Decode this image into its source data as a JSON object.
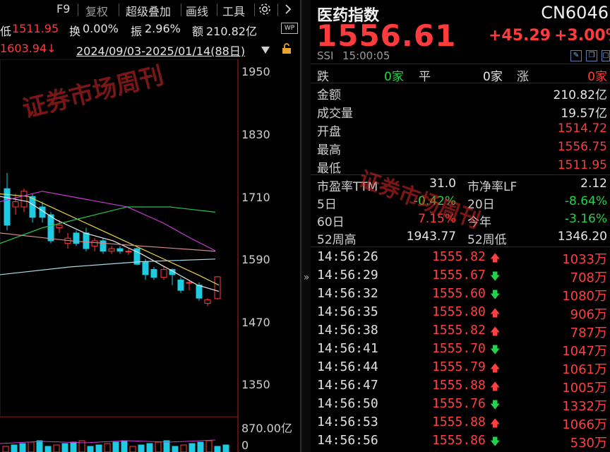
{
  "toolbar": {
    "f9": "F9",
    "fuquan": "复权",
    "overlay": "超级叠加",
    "draw": "画线",
    "tools": "工具",
    "settings_icon": "gear-icon",
    "more_icon": "chevron-right-icon"
  },
  "stats": {
    "low_label": "低",
    "low_value": "1511.95",
    "turnover_label": "换",
    "turnover_value": "0.00%",
    "amplitude_label": "振",
    "amplitude_value": "2.96%",
    "amount_label": "额",
    "amount_value": "210.82亿",
    "wp_badge": "WP"
  },
  "range": {
    "high_mark": "1603.94↓",
    "date_range": "2024/09/03-2025/01/14(88日)",
    "dropdown_icon": "triangle-down-icon",
    "lock_icon": "lock-icon"
  },
  "chart": {
    "price_ticks": [
      "1950",
      "1830",
      "1710",
      "1590",
      "1470",
      "1350"
    ],
    "volume_ticks": [
      "870.00亿",
      "0"
    ],
    "watermark": "证券市场周刊",
    "colors": {
      "up": "#ff3b3b",
      "down": "#1ecbe1",
      "ma5": "#e8e8e8",
      "ma10": "#e8d34a",
      "ma20": "#c83ad6",
      "ma60": "#28c34b"
    }
  },
  "quote": {
    "name": "医药指数",
    "code": "CN6046",
    "price": "1556.61",
    "change": "+45.29",
    "change_pct": "+3.00%",
    "source": "SSI",
    "time": "15:00:05",
    "fall_label": "跌",
    "fall_count": "0家",
    "flat_label": "平",
    "flat_count": "0家",
    "rise_label": "涨",
    "rise_count": "0家",
    "collapse_icon": "chevron-right-icon"
  },
  "details": [
    {
      "label": "金额",
      "value": "210.82亿",
      "color": "white"
    },
    {
      "label": "成交量",
      "value": "19.57亿",
      "color": "white"
    },
    {
      "label": "开盘",
      "value": "1514.72",
      "color": "red"
    },
    {
      "label": "最高",
      "value": "1556.75",
      "color": "red"
    },
    {
      "label": "最低",
      "value": "1511.95",
      "color": "red"
    }
  ],
  "ratios": {
    "pe_label": "市盈率TTM",
    "pe_value": "31.0",
    "pb_label": "市净率LF",
    "pb_value": "2.12",
    "d5_label": "5日",
    "d5_value": "-0.42%",
    "d20_label": "20日",
    "d20_value": "-8.64%",
    "d60_label": "60日",
    "d60_value": "7.15%",
    "ytd_label": "今年",
    "ytd_value": "-3.16%",
    "w52h_label": "52周高",
    "w52h_value": "1943.77",
    "w52l_label": "52周低",
    "w52l_value": "1346.20"
  },
  "ticks": [
    {
      "time": "14:56:26",
      "price": "1555.82",
      "dir": "up",
      "vol": "1033万"
    },
    {
      "time": "14:56:29",
      "price": "1555.67",
      "dir": "down",
      "vol": "708万"
    },
    {
      "time": "14:56:32",
      "price": "1555.60",
      "dir": "down",
      "vol": "1080万"
    },
    {
      "time": "14:56:35",
      "price": "1555.80",
      "dir": "up",
      "vol": "906万"
    },
    {
      "time": "14:56:38",
      "price": "1555.82",
      "dir": "up",
      "vol": "787万"
    },
    {
      "time": "14:56:41",
      "price": "1555.70",
      "dir": "down",
      "vol": "1047万"
    },
    {
      "time": "14:56:44",
      "price": "1555.79",
      "dir": "up",
      "vol": "1061万"
    },
    {
      "time": "14:56:47",
      "price": "1555.88",
      "dir": "up",
      "vol": "1005万"
    },
    {
      "time": "14:56:50",
      "price": "1555.76",
      "dir": "down",
      "vol": "1332万"
    },
    {
      "time": "14:56:53",
      "price": "1555.88",
      "dir": "up",
      "vol": "1066万"
    },
    {
      "time": "14:56:56",
      "price": "1555.86",
      "dir": "down",
      "vol": "530万"
    }
  ]
}
